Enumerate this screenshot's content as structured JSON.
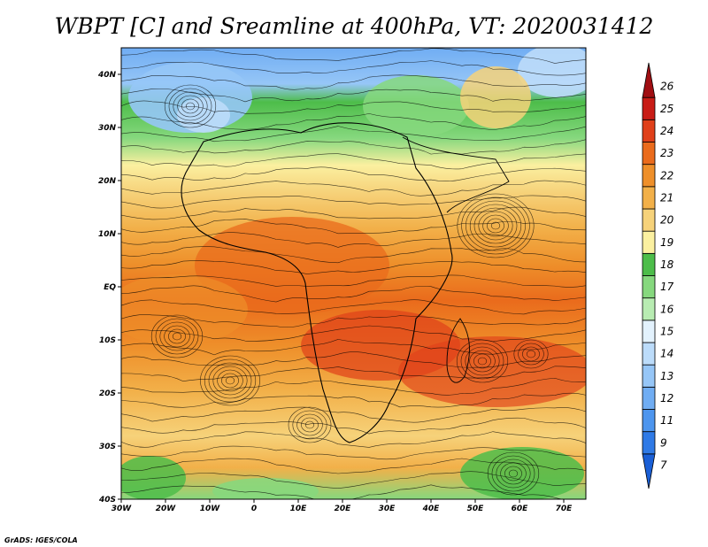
{
  "title": "WBPT [C] and Sreamline at 400hPa, VT: 2020031412",
  "credit": "GrADS: IGES/COLA",
  "map": {
    "lon_range": [
      -30,
      75
    ],
    "lat_range": [
      -40,
      45
    ],
    "lat_ticks": [
      {
        "value": 40,
        "label": "40N"
      },
      {
        "value": 30,
        "label": "30N"
      },
      {
        "value": 20,
        "label": "20N"
      },
      {
        "value": 10,
        "label": "10N"
      },
      {
        "value": 0,
        "label": "EQ"
      },
      {
        "value": -10,
        "label": "10S"
      },
      {
        "value": -20,
        "label": "20S"
      },
      {
        "value": -30,
        "label": "30S"
      },
      {
        "value": -40,
        "label": "40S"
      }
    ],
    "lon_ticks": [
      {
        "value": -30,
        "label": "30W"
      },
      {
        "value": -20,
        "label": "20W"
      },
      {
        "value": -10,
        "label": "10W"
      },
      {
        "value": 0,
        "label": "0"
      },
      {
        "value": 10,
        "label": "10E"
      },
      {
        "value": 20,
        "label": "20E"
      },
      {
        "value": 30,
        "label": "30E"
      },
      {
        "value": 40,
        "label": "40E"
      },
      {
        "value": 50,
        "label": "50E"
      },
      {
        "value": 60,
        "label": "60E"
      },
      {
        "value": 70,
        "label": "70E"
      }
    ]
  },
  "colorbar": {
    "levels": [
      "7",
      "9",
      "11",
      "12",
      "13",
      "14",
      "15",
      "16",
      "17",
      "18",
      "19",
      "20",
      "21",
      "22",
      "23",
      "24",
      "25",
      "26"
    ],
    "colors": [
      "#1a5fd6",
      "#2f7ae6",
      "#4d95ee",
      "#70adf3",
      "#96c6f7",
      "#bcdcfa",
      "#e3f2fd",
      "#b8ecb2",
      "#86d87e",
      "#4dbd4a",
      "#fbf0a0",
      "#f6d27a",
      "#f2b049",
      "#ee8f2a",
      "#ea6b1c",
      "#e0401a",
      "#c81c16",
      "#a00e12"
    ]
  },
  "chart_data": {
    "type": "heatmap",
    "title": "WBPT [C] and Sreamline at 400hPa, VT: 2020031412",
    "field": "Wet-bulb potential temperature with streamlines",
    "level": "400hPa",
    "valid_time": "2020031412",
    "units": "C",
    "lon_range": [
      -30,
      75
    ],
    "lat_range": [
      -40,
      45
    ],
    "value_range": [
      7,
      26
    ],
    "bands": [
      {
        "lat_range": [
          30,
          45
        ],
        "approx_value": "13-17",
        "note": "blue/green over North Africa & Mediterranean"
      },
      {
        "lat_range": [
          20,
          30
        ],
        "approx_value": "17-19",
        "note": "green to yellow"
      },
      {
        "lat_range": [
          10,
          20
        ],
        "approx_value": "19-21",
        "note": "yellow to orange"
      },
      {
        "lat_range": [
          -20,
          10
        ],
        "approx_value": "21-24",
        "note": "orange to red, peak over central/eastern Africa and SW Indian Ocean"
      },
      {
        "lat_range": [
          -35,
          -20
        ],
        "approx_value": "20-21",
        "note": "orange/yellow"
      },
      {
        "lat_range": [
          -40,
          -35
        ],
        "approx_value": "16-18",
        "note": "green patches in southwest and southeast"
      }
    ]
  }
}
